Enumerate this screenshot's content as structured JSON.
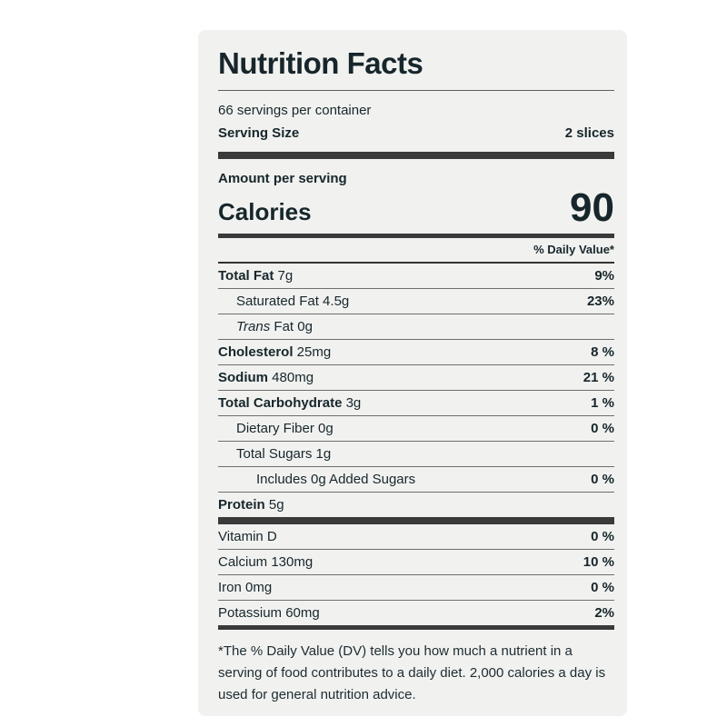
{
  "label": {
    "title": "Nutrition Facts",
    "servings_per_container": "66 servings per container",
    "serving_size_label": "Serving Size",
    "serving_size_value": "2 slices",
    "amount_per_serving": "Amount per serving",
    "calories_label": "Calories",
    "calories_value": "90",
    "daily_value_header": "% Daily Value*",
    "rows": [
      {
        "b": "Total Fat",
        "r": " 7g",
        "dv": "9%"
      },
      {
        "r": "Saturated Fat 4.5g",
        "dv": "23%"
      },
      {
        "i": "Trans",
        "r": " Fat 0g",
        "dv": ""
      },
      {
        "b": "Cholesterol",
        "r": " 25mg",
        "dv": "8 %"
      },
      {
        "b": "Sodium",
        "r": " 480mg",
        "dv": "21 %"
      },
      {
        "b": "Total Carbohydrate",
        "r": " 3g",
        "dv": "1 %"
      },
      {
        "r": "Dietary Fiber 0g",
        "dv": "0 %"
      },
      {
        "r": "Total Sugars 1g",
        "dv": ""
      },
      {
        "r": "Includes 0g Added Sugars",
        "dv": "0 %"
      },
      {
        "b": "Protein",
        "r": " 5g",
        "dv": ""
      }
    ],
    "vitamins": [
      {
        "name": "Vitamin D",
        "dv": "0 %"
      },
      {
        "name": "Calcium 130mg",
        "dv": "10 %"
      },
      {
        "name": "Iron 0mg",
        "dv": "0 %"
      },
      {
        "name": "Potassium 60mg",
        "dv": "2%"
      }
    ],
    "footnote": "*The % Daily Value (DV) tells you how much a nutrient in a serving of food contributes to a daily diet. 2,000 calories a day is used for general nutrition advice."
  },
  "colors": {
    "card_bg": "#f1f2f0",
    "text": "#17262b",
    "bar": "#3a3a3a",
    "hairline": "#6e6e6e"
  }
}
